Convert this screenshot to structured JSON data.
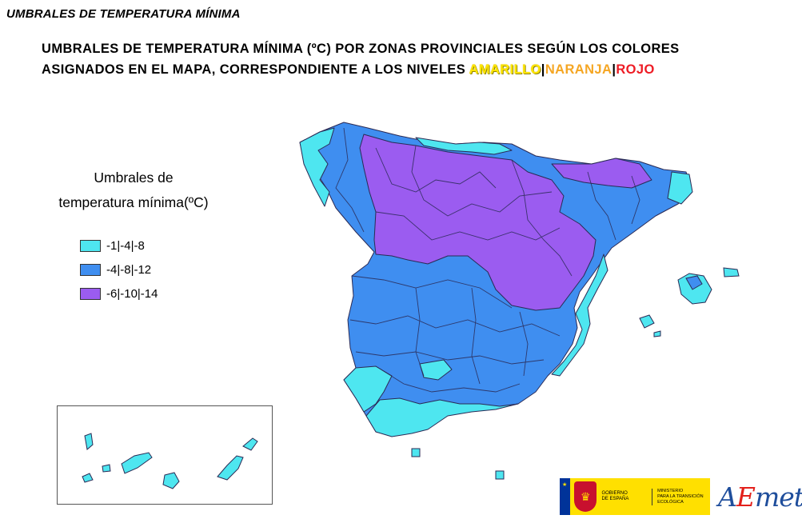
{
  "header": {
    "page_title": "UMBRALES DE TEMPERATURA MÍNIMA",
    "subtitle_line1": "UMBRALES DE TEMPERATURA MÍNIMA (ºC) POR ZONAS PROVINCIALES SEGÚN LOS COLORES",
    "subtitle_line2": "ASIGNADOS EN EL MAPA, CORRESPONDIENTE  A  LOS  NIVELES",
    "level_yellow": "AMARILLO",
    "level_orange": "NARANJA",
    "level_red": "ROJO",
    "separator": "|"
  },
  "legend": {
    "title_line1": "Umbrales de",
    "title_line2": "temperatura mínima(ºC)",
    "items": [
      {
        "label": "-1|-4|-8",
        "color": "#4ee6f0"
      },
      {
        "label": "-4|-8|-12",
        "color": "#3f8ef0"
      },
      {
        "label": "-6|-10|-14",
        "color": "#9b5cf0"
      }
    ]
  },
  "colors": {
    "cyan": "#4ee6f0",
    "blue": "#3f8ef0",
    "purple": "#9b5cf0",
    "border": "#2a2a55"
  },
  "logos": {
    "gov_line1": "GOBIERNO",
    "gov_line2": "DE ESPAÑA",
    "ministry_line1": "MINISTERIO",
    "ministry_line2": "PARA LA TRANSICIÓN ECOLÓGICA",
    "aemet_a": "A",
    "aemet_e": "E",
    "aemet_rest": "met"
  }
}
